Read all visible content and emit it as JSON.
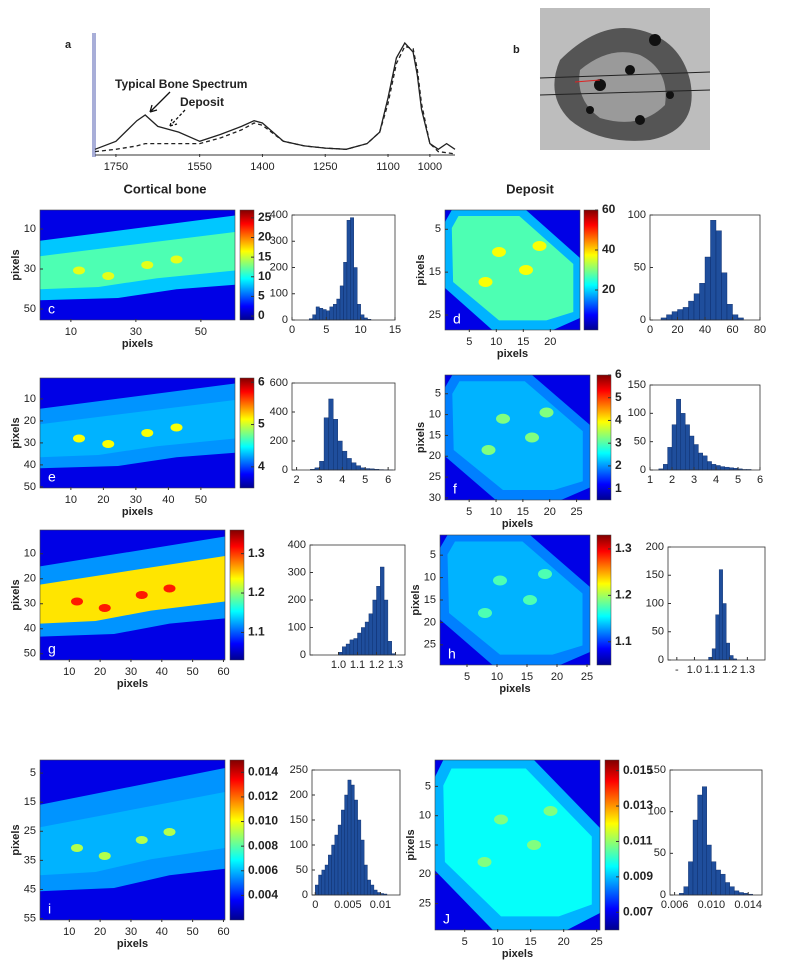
{
  "image_panel": {
    "label": "b"
  },
  "section_titles": [
    "Cortical bone",
    "Deposit"
  ],
  "chart_data": [
    {
      "type": "line",
      "label": "a",
      "xlim": [
        1800,
        940
      ],
      "ylim": [
        0,
        1.05
      ],
      "xticks": [
        1750,
        1550,
        1400,
        1250,
        1100,
        1000
      ],
      "x": [
        1800,
        1750,
        1700,
        1680,
        1650,
        1600,
        1550,
        1500,
        1450,
        1420,
        1400,
        1350,
        1300,
        1250,
        1200,
        1150,
        1120,
        1100,
        1080,
        1060,
        1040,
        1030,
        1020,
        1000,
        980,
        960,
        940
      ],
      "series": [
        {
          "name": "Typical Bone Spectrum",
          "color": "#222222",
          "dash": false,
          "values": [
            0.05,
            0.12,
            0.3,
            0.35,
            0.25,
            0.2,
            0.12,
            0.18,
            0.25,
            0.3,
            0.28,
            0.12,
            0.08,
            0.06,
            0.05,
            0.1,
            0.2,
            0.5,
            0.85,
            0.98,
            0.9,
            0.7,
            0.4,
            0.1,
            0.05,
            0.1,
            0.05
          ]
        },
        {
          "name": "Deposit",
          "color": "#222222",
          "dash": true,
          "values": [
            0.03,
            0.05,
            0.08,
            0.1,
            0.1,
            0.1,
            0.1,
            0.15,
            0.22,
            0.28,
            0.26,
            0.12,
            0.08,
            0.06,
            0.05,
            0.1,
            0.2,
            0.45,
            0.8,
            0.95,
            0.93,
            0.75,
            0.45,
            0.1,
            0.03,
            0.02,
            0.01
          ]
        }
      ]
    },
    {
      "type": "heatmap",
      "label": "c",
      "xlim": [
        0.5,
        60.5
      ],
      "ylim": [
        55.5,
        0.5
      ],
      "xticks": [
        10,
        30,
        50
      ],
      "yticks": [
        10,
        30,
        50
      ],
      "xlabel": "pixels",
      "ylabel": "pixels",
      "clim": [
        -1,
        27
      ],
      "cticks": [
        0,
        5,
        10,
        15,
        20,
        25
      ]
    },
    {
      "type": "histogram",
      "color": "#1f4e9c",
      "xlim": [
        0,
        15
      ],
      "ylim": [
        0,
        400
      ],
      "xticks": [
        0,
        5,
        10,
        15
      ],
      "yticks": [
        0,
        100,
        200,
        300,
        400
      ],
      "bins": [
        0,
        0.5,
        1,
        1.5,
        2,
        2.5,
        3,
        3.5,
        4,
        4.5,
        5,
        5.5,
        6,
        6.5,
        7,
        7.5,
        8,
        8.5,
        9,
        9.5,
        10,
        10.5,
        11,
        11.5,
        12,
        12.5,
        13,
        13.5,
        14,
        14.5,
        15
      ],
      "counts": [
        0,
        0,
        0,
        0,
        0,
        5,
        20,
        50,
        45,
        40,
        35,
        50,
        60,
        80,
        130,
        220,
        380,
        390,
        200,
        60,
        20,
        8,
        3,
        0,
        0,
        0,
        0,
        0,
        0,
        0
      ]
    },
    {
      "type": "heatmap",
      "label": "d",
      "xlim": [
        0.5,
        25.5
      ],
      "ylim": [
        28.5,
        0.5
      ],
      "xticks": [
        5,
        10,
        15,
        20
      ],
      "yticks": [
        5,
        15,
        25
      ],
      "xlabel": "pixels",
      "ylabel": "pixels",
      "clim": [
        0,
        60
      ],
      "cticks": [
        20,
        40,
        60
      ]
    },
    {
      "type": "histogram",
      "color": "#1f4e9c",
      "xlim": [
        0,
        80
      ],
      "ylim": [
        0,
        100
      ],
      "xticks": [
        0,
        20,
        40,
        60,
        80
      ],
      "yticks": [
        0,
        50,
        100
      ],
      "bins": [
        0,
        4,
        8,
        12,
        16,
        20,
        24,
        28,
        32,
        36,
        40,
        44,
        48,
        52,
        56,
        60,
        64,
        68,
        72,
        76,
        80
      ],
      "counts": [
        0,
        0,
        2,
        5,
        8,
        10,
        12,
        18,
        25,
        35,
        60,
        95,
        85,
        45,
        15,
        5,
        2,
        0,
        0,
        0
      ]
    },
    {
      "type": "heatmap",
      "label": "e",
      "xlim": [
        0.5,
        60.5
      ],
      "ylim": [
        50.5,
        0.5
      ],
      "xticks": [
        10,
        20,
        30,
        40,
        50
      ],
      "yticks": [
        10,
        20,
        30,
        40,
        50
      ],
      "xlabel": "pixels",
      "ylabel": "pixels",
      "clim": [
        3.5,
        6.1
      ],
      "cticks": [
        4,
        5,
        6
      ]
    },
    {
      "type": "histogram",
      "color": "#1f4e9c",
      "xlim": [
        1.8,
        6.3
      ],
      "ylim": [
        0,
        600
      ],
      "xticks": [
        2,
        3,
        4,
        5,
        6
      ],
      "yticks": [
        0,
        200,
        400,
        600
      ],
      "bins": [
        2,
        2.2,
        2.4,
        2.6,
        2.8,
        3,
        3.2,
        3.4,
        3.6,
        3.8,
        4,
        4.2,
        4.4,
        4.6,
        4.8,
        5,
        5.2,
        5.4,
        5.6,
        5.8,
        6,
        6.2
      ],
      "counts": [
        0,
        0,
        0,
        5,
        15,
        60,
        360,
        490,
        350,
        200,
        130,
        80,
        50,
        30,
        15,
        10,
        8,
        5,
        3,
        2,
        1
      ]
    },
    {
      "type": "heatmap",
      "label": "f",
      "xlim": [
        0.5,
        27.5
      ],
      "ylim": [
        30.5,
        0.5
      ],
      "xticks": [
        5,
        10,
        15,
        20,
        25
      ],
      "yticks": [
        5,
        10,
        15,
        20,
        25,
        30
      ],
      "xlabel": "pixels",
      "ylabel": "pixels",
      "clim": [
        0.5,
        6
      ],
      "cticks": [
        1,
        2,
        3,
        4,
        5,
        6
      ]
    },
    {
      "type": "histogram",
      "color": "#1f4e9c",
      "xlim": [
        1,
        6
      ],
      "ylim": [
        0,
        150
      ],
      "xticks": [
        1,
        2,
        3,
        4,
        5,
        6
      ],
      "yticks": [
        0,
        50,
        100,
        150
      ],
      "bins": [
        1,
        1.2,
        1.4,
        1.6,
        1.8,
        2,
        2.2,
        2.4,
        2.6,
        2.8,
        3,
        3.2,
        3.4,
        3.6,
        3.8,
        4,
        4.2,
        4.4,
        4.6,
        4.8,
        5,
        5.2,
        5.4,
        5.6,
        5.8,
        6
      ],
      "counts": [
        0,
        0,
        2,
        10,
        40,
        80,
        125,
        100,
        80,
        60,
        45,
        30,
        25,
        15,
        10,
        8,
        6,
        5,
        4,
        3,
        2,
        1,
        1,
        0,
        0
      ]
    },
    {
      "type": "heatmap",
      "label": "g",
      "xlim": [
        0.5,
        60.5
      ],
      "ylim": [
        52.5,
        0.5
      ],
      "xticks": [
        10,
        20,
        30,
        40,
        50,
        60
      ],
      "yticks": [
        10,
        20,
        30,
        40,
        50
      ],
      "xlabel": "pixels",
      "ylabel": "pixels",
      "clim": [
        1.03,
        1.36
      ],
      "cticks": [
        1.1,
        1.2,
        1.3
      ]
    },
    {
      "type": "histogram",
      "color": "#1f4e9c",
      "xlim": [
        0.85,
        1.35
      ],
      "ylim": [
        0,
        400
      ],
      "xticks": [
        {
          "value": 1,
          "label": "1.0"
        },
        1.1,
        1.2,
        1.3
      ],
      "yticks": [
        0,
        100,
        200,
        300,
        400
      ],
      "bins": [
        0.9,
        0.92,
        0.94,
        0.96,
        0.98,
        1,
        1.02,
        1.04,
        1.06,
        1.08,
        1.1,
        1.12,
        1.14,
        1.16,
        1.18,
        1.2,
        1.22,
        1.24,
        1.26,
        1.28,
        1.3
      ],
      "counts": [
        0,
        0,
        0,
        0,
        0,
        10,
        30,
        40,
        55,
        60,
        80,
        100,
        120,
        150,
        200,
        250,
        320,
        200,
        50,
        5
      ]
    },
    {
      "type": "heatmap",
      "label": "h",
      "xlim": [
        0.5,
        25.5
      ],
      "ylim": [
        29.5,
        0.5
      ],
      "xticks": [
        5,
        10,
        15,
        20,
        25
      ],
      "yticks": [
        5,
        10,
        15,
        20,
        25
      ],
      "xlabel": "pixels",
      "ylabel": "pixels",
      "clim": [
        1.05,
        1.33
      ],
      "cticks": [
        1.1,
        1.2,
        1.3
      ]
    },
    {
      "type": "histogram",
      "color": "#1f4e9c",
      "xlim": [
        0.85,
        1.4
      ],
      "ylim": [
        0,
        200
      ],
      "xticks": [
        {
          "value": 0.9,
          "label": "-"
        },
        {
          "value": 1,
          "label": "1.0"
        },
        1.1,
        1.2,
        1.3
      ],
      "yticks": [
        0,
        50,
        100,
        150,
        200
      ],
      "bins": [
        1,
        1.02,
        1.04,
        1.06,
        1.08,
        1.1,
        1.12,
        1.14,
        1.16,
        1.18,
        1.2,
        1.22,
        1.24,
        1.26,
        1.28,
        1.3
      ],
      "counts": [
        0,
        0,
        0,
        0,
        5,
        20,
        80,
        160,
        100,
        30,
        8,
        2,
        0,
        0,
        0
      ]
    },
    {
      "type": "heatmap",
      "label": "i",
      "xlim": [
        0.5,
        60.5
      ],
      "ylim": [
        55.5,
        0.5
      ],
      "xticks": [
        10,
        20,
        30,
        40,
        50,
        60
      ],
      "yticks": [
        5,
        15,
        25,
        35,
        45,
        55
      ],
      "xlabel": "pixels",
      "ylabel": "pixels",
      "clim": [
        0.002,
        0.015
      ],
      "cticks": [
        0.004,
        0.006,
        0.008,
        {
          "value": 0.01,
          "label": "0.010"
        },
        0.012,
        0.014
      ]
    },
    {
      "type": "histogram",
      "color": "#1f4e9c",
      "xlim": [
        -0.0005,
        0.013
      ],
      "ylim": [
        0,
        250
      ],
      "xticks": [
        0,
        0.005,
        0.01
      ],
      "yticks": [
        0,
        50,
        100,
        150,
        200,
        250
      ],
      "bins": [
        0,
        0.0005,
        0.001,
        0.0015,
        0.002,
        0.0025,
        0.003,
        0.0035,
        0.004,
        0.0045,
        0.005,
        0.0055,
        0.006,
        0.0065,
        0.007,
        0.0075,
        0.008,
        0.0085,
        0.009,
        0.0095,
        0.01,
        0.0105,
        0.011,
        0.0115,
        0.012
      ],
      "counts": [
        20,
        40,
        50,
        60,
        80,
        100,
        120,
        140,
        170,
        200,
        230,
        220,
        190,
        150,
        110,
        60,
        30,
        20,
        10,
        5,
        3,
        2,
        0,
        0
      ]
    },
    {
      "type": "heatmap",
      "label": "J",
      "xlim": [
        0.5,
        25.5
      ],
      "ylim": [
        29.5,
        0.5
      ],
      "xticks": [
        5,
        10,
        15,
        20,
        25
      ],
      "yticks": [
        5,
        10,
        15,
        20,
        25
      ],
      "xlabel": "pixels",
      "ylabel": "pixels",
      "clim": [
        0.006,
        0.0156
      ],
      "cticks": [
        0.007,
        0.009,
        0.011,
        0.013,
        0.015
      ]
    },
    {
      "type": "histogram",
      "color": "#1f4e9c",
      "xlim": [
        0.0055,
        0.0155
      ],
      "ylim": [
        0,
        150
      ],
      "xticks": [
        0.006,
        {
          "value": 0.01,
          "label": "0.010"
        },
        0.014
      ],
      "yticks": [
        0,
        50,
        100,
        150
      ],
      "bins": [
        0.006,
        0.0065,
        0.007,
        0.0075,
        0.008,
        0.0085,
        0.009,
        0.0095,
        0.01,
        0.0105,
        0.011,
        0.0115,
        0.012,
        0.0125,
        0.013,
        0.0135,
        0.014,
        0.0145,
        0.015
      ],
      "counts": [
        0,
        2,
        10,
        40,
        90,
        120,
        130,
        60,
        40,
        30,
        25,
        15,
        10,
        5,
        3,
        2,
        1,
        0
      ]
    }
  ]
}
